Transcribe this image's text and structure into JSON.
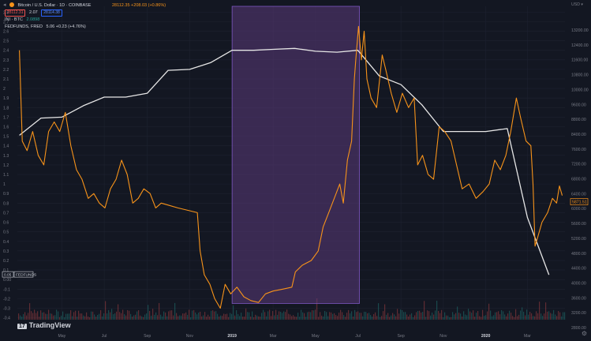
{
  "header": {
    "symbol": "Bitcoin / U.S. Dollar · 1D · COINBASE",
    "price_change": "28112.35 +208.03 (+0.86%)",
    "sell_price": "28112.31",
    "spread": "2.07",
    "buy_price": "28114.38",
    "indicator_1": "INI · BTC",
    "indicator_1_value": "2.0898",
    "indicator_2": "FEDFUNDS, FRED",
    "indicator_2_value": "5.06 +0.23 (+4.76%)"
  },
  "currency_label": "USD ▾",
  "fedfunds_tag": "FEDFUNDS",
  "fedfunds_tag_value": "0.05",
  "btc_price_tag": "5871.51",
  "logo_text": "TradingView",
  "colors": {
    "background": "#131722",
    "btc_line": "#f7931a",
    "fedfunds_line": "#e6e6e6",
    "highlight_fill": "#5b3a7a",
    "highlight_stroke": "#7e57c2",
    "grid": "#1e2230",
    "text": "#787b86"
  },
  "chart_data": {
    "type": "line",
    "left_axis": {
      "ticks": [
        "2.8",
        "2.7",
        "2.6",
        "2.5",
        "2.4",
        "2.3",
        "2.2",
        "2.1",
        "2",
        "1.9",
        "1.8",
        "1.7",
        "1.6",
        "1.5",
        "1.4",
        "1.3",
        "1.2",
        "1.1",
        "1",
        "0.9",
        "0.8",
        "0.7",
        "0.6",
        "0.5",
        "0.4",
        "0.3",
        "0.2",
        "0.1",
        "0.00",
        "-0.1",
        "-0.2",
        "-0.3",
        "-0.4"
      ],
      "range": [
        -0.42,
        2.86
      ]
    },
    "right_axis": {
      "ticks": [
        "13200.00",
        "12400.00",
        "11600.00",
        "10800.00",
        "10000.00",
        "9600.00",
        "8800.00",
        "8400.00",
        "7600.00",
        "7200.00",
        "6800.00",
        "6400.00",
        "6000.00",
        "5600.00",
        "5200.00",
        "4800.00",
        "4400.00",
        "4000.00",
        "3600.00",
        "3200.00",
        "2800.00"
      ],
      "scale": "non-linear"
    },
    "x_ticks": [
      "May",
      "Jul",
      "Sep",
      "Nov",
      "2019",
      "Mar",
      "May",
      "Jul",
      "Sep",
      "Nov",
      "2020",
      "Mar"
    ],
    "highlight": {
      "from": "2019-01",
      "to": "2019-07"
    },
    "series": [
      {
        "name": "FEDFUNDS",
        "axis": "left",
        "values": [
          {
            "x": "2018-03-01",
            "y": 1.51
          },
          {
            "x": "2018-04-01",
            "y": 1.69
          },
          {
            "x": "2018-05-01",
            "y": 1.7
          },
          {
            "x": "2018-06-01",
            "y": 1.82
          },
          {
            "x": "2018-07-01",
            "y": 1.91
          },
          {
            "x": "2018-08-01",
            "y": 1.91
          },
          {
            "x": "2018-09-01",
            "y": 1.95
          },
          {
            "x": "2018-10-01",
            "y": 2.19
          },
          {
            "x": "2018-11-01",
            "y": 2.2
          },
          {
            "x": "2018-12-01",
            "y": 2.27
          },
          {
            "x": "2019-01-01",
            "y": 2.4
          },
          {
            "x": "2019-02-01",
            "y": 2.4
          },
          {
            "x": "2019-03-01",
            "y": 2.41
          },
          {
            "x": "2019-04-01",
            "y": 2.42
          },
          {
            "x": "2019-05-01",
            "y": 2.39
          },
          {
            "x": "2019-06-01",
            "y": 2.38
          },
          {
            "x": "2019-07-01",
            "y": 2.4
          },
          {
            "x": "2019-08-01",
            "y": 2.13
          },
          {
            "x": "2019-09-01",
            "y": 2.04
          },
          {
            "x": "2019-10-01",
            "y": 1.83
          },
          {
            "x": "2019-11-01",
            "y": 1.55
          },
          {
            "x": "2019-12-01",
            "y": 1.55
          },
          {
            "x": "2020-01-01",
            "y": 1.55
          },
          {
            "x": "2020-02-01",
            "y": 1.58
          },
          {
            "x": "2020-03-01",
            "y": 0.65
          },
          {
            "x": "2020-04-01",
            "y": 0.05
          }
        ]
      },
      {
        "name": "BTC/USD",
        "axis": "left",
        "values": [
          {
            "x": "2018-03-01",
            "y": 2.4
          },
          {
            "x": "2018-03-05",
            "y": 1.45
          },
          {
            "x": "2018-03-12",
            "y": 1.35
          },
          {
            "x": "2018-03-20",
            "y": 1.55
          },
          {
            "x": "2018-03-28",
            "y": 1.3
          },
          {
            "x": "2018-04-05",
            "y": 1.2
          },
          {
            "x": "2018-04-12",
            "y": 1.55
          },
          {
            "x": "2018-04-20",
            "y": 1.65
          },
          {
            "x": "2018-04-28",
            "y": 1.55
          },
          {
            "x": "2018-05-06",
            "y": 1.75
          },
          {
            "x": "2018-05-14",
            "y": 1.4
          },
          {
            "x": "2018-05-22",
            "y": 1.15
          },
          {
            "x": "2018-05-30",
            "y": 1.05
          },
          {
            "x": "2018-06-08",
            "y": 0.85
          },
          {
            "x": "2018-06-16",
            "y": 0.9
          },
          {
            "x": "2018-06-24",
            "y": 0.8
          },
          {
            "x": "2018-07-02",
            "y": 0.75
          },
          {
            "x": "2018-07-10",
            "y": 0.95
          },
          {
            "x": "2018-07-18",
            "y": 1.05
          },
          {
            "x": "2018-07-26",
            "y": 1.25
          },
          {
            "x": "2018-08-03",
            "y": 1.1
          },
          {
            "x": "2018-08-11",
            "y": 0.8
          },
          {
            "x": "2018-08-19",
            "y": 0.85
          },
          {
            "x": "2018-08-27",
            "y": 0.95
          },
          {
            "x": "2018-09-05",
            "y": 0.9
          },
          {
            "x": "2018-09-13",
            "y": 0.75
          },
          {
            "x": "2018-09-21",
            "y": 0.8
          },
          {
            "x": "2018-10-01",
            "y": 0.78
          },
          {
            "x": "2018-10-15",
            "y": 0.75
          },
          {
            "x": "2018-11-01",
            "y": 0.72
          },
          {
            "x": "2018-11-12",
            "y": 0.7
          },
          {
            "x": "2018-11-16",
            "y": 0.3
          },
          {
            "x": "2018-11-22",
            "y": 0.05
          },
          {
            "x": "2018-11-30",
            "y": -0.05
          },
          {
            "x": "2018-12-07",
            "y": -0.2
          },
          {
            "x": "2018-12-15",
            "y": -0.3
          },
          {
            "x": "2018-12-22",
            "y": -0.05
          },
          {
            "x": "2018-12-30",
            "y": -0.15
          },
          {
            "x": "2019-01-08",
            "y": -0.08
          },
          {
            "x": "2019-01-18",
            "y": -0.18
          },
          {
            "x": "2019-01-28",
            "y": -0.22
          },
          {
            "x": "2019-02-08",
            "y": -0.24
          },
          {
            "x": "2019-02-18",
            "y": -0.15
          },
          {
            "x": "2019-03-01",
            "y": -0.12
          },
          {
            "x": "2019-03-15",
            "y": -0.1
          },
          {
            "x": "2019-03-28",
            "y": -0.08
          },
          {
            "x": "2019-04-02",
            "y": 0.08
          },
          {
            "x": "2019-04-12",
            "y": 0.15
          },
          {
            "x": "2019-04-25",
            "y": 0.2
          },
          {
            "x": "2019-05-05",
            "y": 0.3
          },
          {
            "x": "2019-05-12",
            "y": 0.55
          },
          {
            "x": "2019-05-20",
            "y": 0.7
          },
          {
            "x": "2019-05-28",
            "y": 0.85
          },
          {
            "x": "2019-06-05",
            "y": 1.0
          },
          {
            "x": "2019-06-10",
            "y": 0.8
          },
          {
            "x": "2019-06-16",
            "y": 1.25
          },
          {
            "x": "2019-06-22",
            "y": 1.45
          },
          {
            "x": "2019-06-26",
            "y": 2.1
          },
          {
            "x": "2019-06-28",
            "y": 2.3
          },
          {
            "x": "2019-07-02",
            "y": 2.65
          },
          {
            "x": "2019-07-06",
            "y": 2.3
          },
          {
            "x": "2019-07-10",
            "y": 2.6
          },
          {
            "x": "2019-07-14",
            "y": 2.1
          },
          {
            "x": "2019-07-20",
            "y": 1.9
          },
          {
            "x": "2019-07-28",
            "y": 1.8
          },
          {
            "x": "2019-08-05",
            "y": 2.35
          },
          {
            "x": "2019-08-10",
            "y": 2.2
          },
          {
            "x": "2019-08-18",
            "y": 1.95
          },
          {
            "x": "2019-08-26",
            "y": 1.75
          },
          {
            "x": "2019-09-03",
            "y": 1.95
          },
          {
            "x": "2019-09-12",
            "y": 1.8
          },
          {
            "x": "2019-09-20",
            "y": 1.9
          },
          {
            "x": "2019-09-25",
            "y": 1.2
          },
          {
            "x": "2019-10-02",
            "y": 1.3
          },
          {
            "x": "2019-10-10",
            "y": 1.1
          },
          {
            "x": "2019-10-18",
            "y": 1.05
          },
          {
            "x": "2019-10-26",
            "y": 1.6
          },
          {
            "x": "2019-11-03",
            "y": 1.55
          },
          {
            "x": "2019-11-12",
            "y": 1.45
          },
          {
            "x": "2019-11-20",
            "y": 1.2
          },
          {
            "x": "2019-11-28",
            "y": 0.95
          },
          {
            "x": "2019-12-08",
            "y": 1.0
          },
          {
            "x": "2019-12-18",
            "y": 0.85
          },
          {
            "x": "2019-12-28",
            "y": 0.92
          },
          {
            "x": "2020-01-06",
            "y": 1.0
          },
          {
            "x": "2020-01-14",
            "y": 1.25
          },
          {
            "x": "2020-01-22",
            "y": 1.15
          },
          {
            "x": "2020-01-30",
            "y": 1.3
          },
          {
            "x": "2020-02-06",
            "y": 1.55
          },
          {
            "x": "2020-02-14",
            "y": 1.9
          },
          {
            "x": "2020-02-20",
            "y": 1.7
          },
          {
            "x": "2020-02-28",
            "y": 1.45
          },
          {
            "x": "2020-03-06",
            "y": 1.4
          },
          {
            "x": "2020-03-09",
            "y": 1.0
          },
          {
            "x": "2020-03-12",
            "y": 0.35
          },
          {
            "x": "2020-03-16",
            "y": 0.45
          },
          {
            "x": "2020-03-22",
            "y": 0.6
          },
          {
            "x": "2020-03-30",
            "y": 0.7
          },
          {
            "x": "2020-04-06",
            "y": 0.85
          },
          {
            "x": "2020-04-12",
            "y": 0.8
          },
          {
            "x": "2020-04-16",
            "y": 0.98
          },
          {
            "x": "2020-04-20",
            "y": 0.88
          }
        ]
      }
    ]
  }
}
